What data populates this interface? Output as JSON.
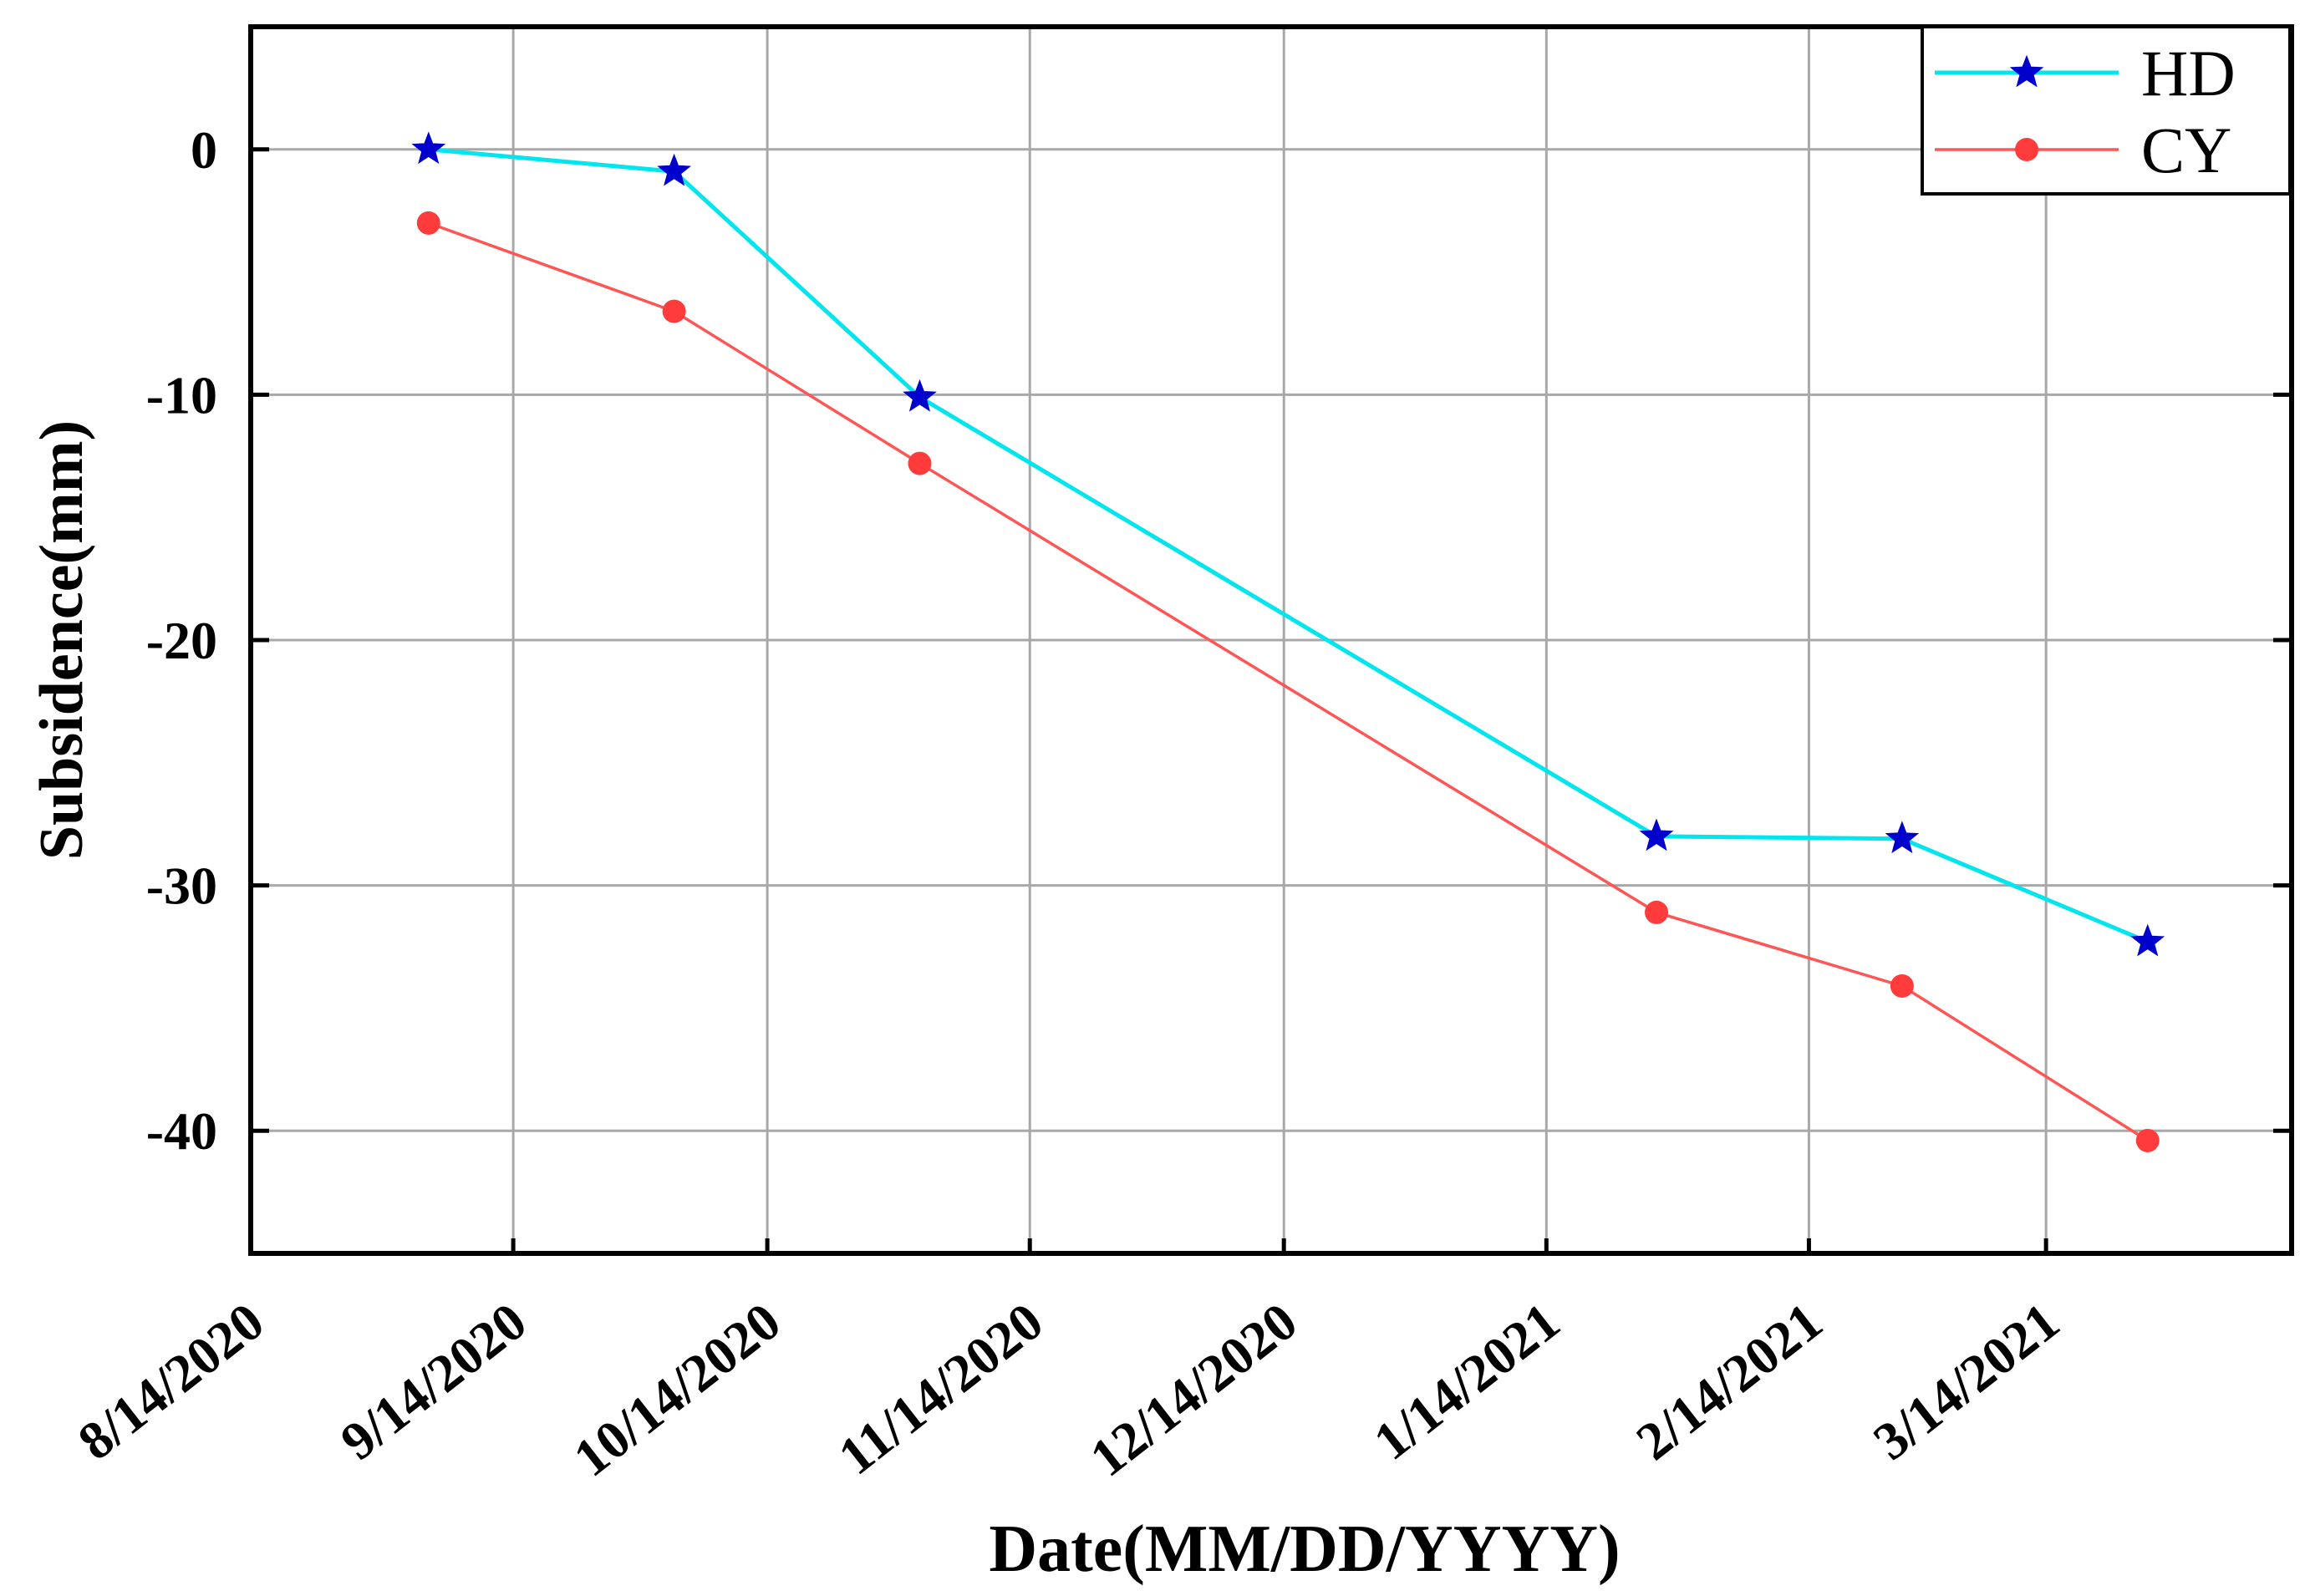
{
  "chart_data": {
    "type": "line",
    "title": "",
    "xlabel": "Date(MM/DD/YYYY)",
    "ylabel": "Subsidence(mm)",
    "x_ticks": [
      "8/14/2020",
      "9/14/2020",
      "10/14/2020",
      "11/14/2020",
      "12/14/2020",
      "1/14/2021",
      "2/14/2021",
      "3/14/2021"
    ],
    "x_tick_days": [
      0,
      31,
      61,
      92,
      122,
      153,
      184,
      212
    ],
    "x_range_days": [
      0,
      241
    ],
    "y_ticks": [
      0,
      -10,
      -20,
      -30,
      -40
    ],
    "y_tick_labels": [
      "0",
      "-10",
      "-20",
      "-30",
      "-40"
    ],
    "ylim": [
      -45,
      5
    ],
    "grid": true,
    "legend_position": "top-right",
    "series": [
      {
        "name": "HD",
        "color": "#00e5ee",
        "marker": "star",
        "marker_color": "#0000cc",
        "x_days": [
          21,
          50,
          79,
          166,
          195,
          224
        ],
        "values": [
          0,
          -0.9,
          -10.1,
          -28,
          -28.1,
          -32.3
        ]
      },
      {
        "name": "CY",
        "color": "#ff5555",
        "marker": "circle",
        "marker_color": "#ff3b3b",
        "x_days": [
          21,
          50,
          79,
          166,
          195,
          224
        ],
        "values": [
          -3,
          -6.6,
          -12.8,
          -31.1,
          -34.1,
          -40.4
        ]
      }
    ]
  }
}
